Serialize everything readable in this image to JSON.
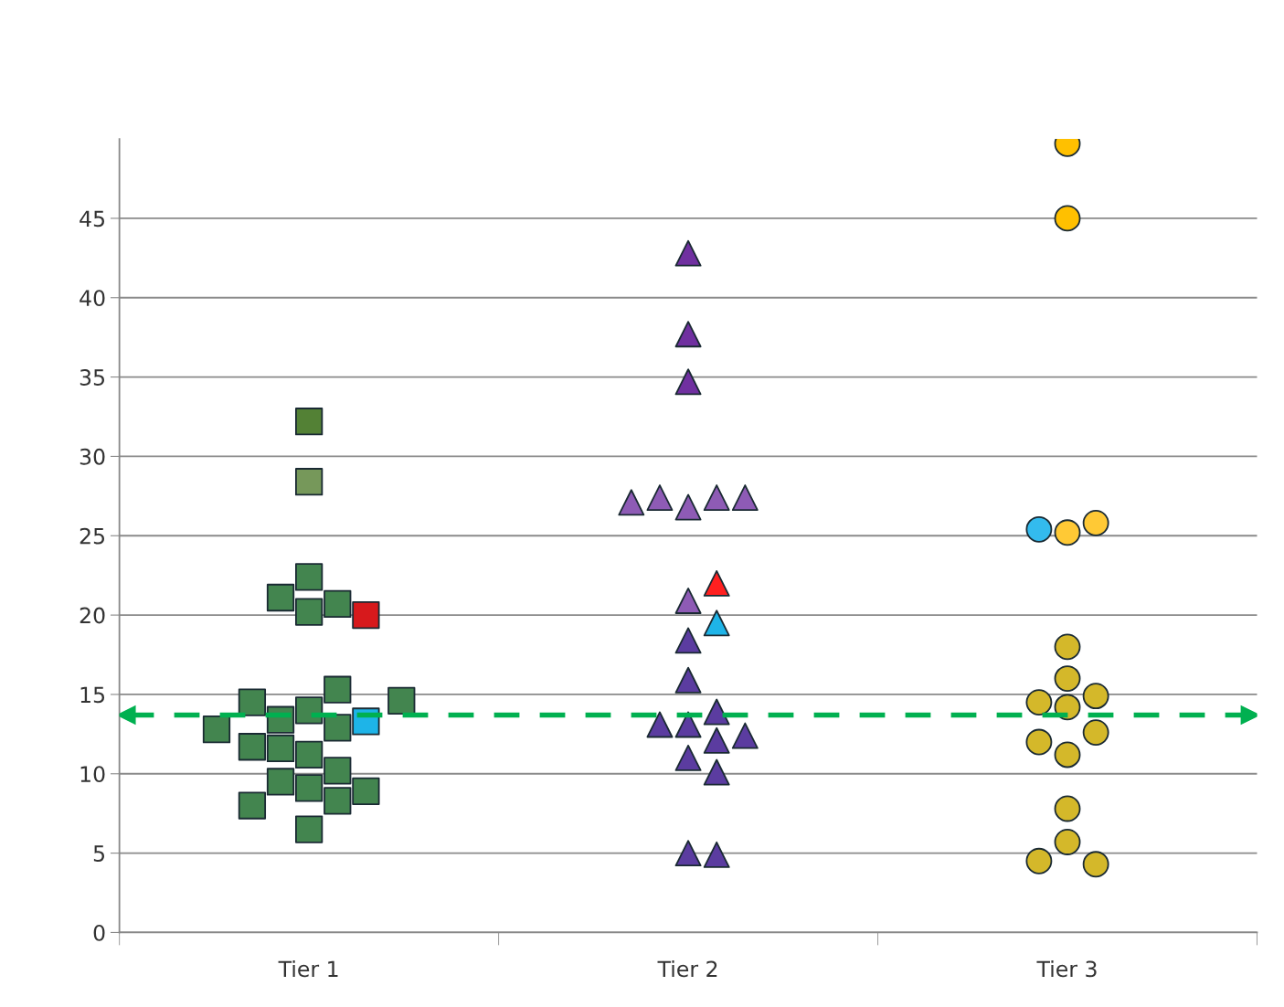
{
  "chart_data": {
    "type": "scatter",
    "categories": [
      "Tier 1",
      "Tier 2",
      "Tier 3"
    ],
    "ylim": [
      0,
      50
    ],
    "yticks": [
      0,
      5,
      10,
      15,
      20,
      25,
      30,
      35,
      40,
      45
    ],
    "grid": "y",
    "ref_lines": [
      {
        "axis": "y",
        "value": 13.7,
        "color": "#00b050",
        "line_style": "dashed"
      }
    ],
    "series": [
      {
        "marker": "square",
        "x": [
          "Tier 1",
          "Tier 1",
          "Tier 1",
          "Tier 1",
          "Tier 1",
          "Tier 1",
          "Tier 1",
          "Tier 1",
          "Tier 1",
          "Tier 1",
          "Tier 1",
          "Tier 1",
          "Tier 1",
          "Tier 1",
          "Tier 1",
          "Tier 1",
          "Tier 1",
          "Tier 1",
          "Tier 1",
          "Tier 1",
          "Tier 1",
          "Tier 1",
          "Tier 1",
          "Tier 1",
          "Tier 1"
        ],
        "values": [
          32.2,
          28.4,
          22.4,
          20.7,
          21.1,
          20.2,
          20.0,
          14.0,
          12.9,
          13.4,
          13.3,
          11.2,
          9.1,
          8.3,
          6.5,
          11.6,
          14.5,
          15.3,
          14.6,
          12.8,
          11.7,
          10.2,
          9.5,
          8.9,
          8.0
        ],
        "colors": [
          "#538135",
          "#76985a",
          "#43854f",
          "#43854f",
          "#43854f",
          "#43854f",
          "#d7191c",
          "#43854f",
          "#43854f",
          "#43854f",
          "#1eb4e8",
          "#43854f",
          "#43854f",
          "#43854f",
          "#43854f",
          "#43854f",
          "#43854f",
          "#43854f",
          "#43854f",
          "#43854f",
          "#43854f",
          "#43854f",
          "#43854f",
          "#43854f",
          "#43854f"
        ]
      },
      {
        "marker": "triangle",
        "x": [
          "Tier 2",
          "Tier 2",
          "Tier 2",
          "Tier 2",
          "Tier 2",
          "Tier 2",
          "Tier 2",
          "Tier 2",
          "Tier 2",
          "Tier 2",
          "Tier 2",
          "Tier 2",
          "Tier 2",
          "Tier 2",
          "Tier 2",
          "Tier 2",
          "Tier 2",
          "Tier 2",
          "Tier 2",
          "Tier 2",
          "Tier 2",
          "Tier 2"
        ],
        "values": [
          42.8,
          37.7,
          34.7,
          26.8,
          27.4,
          27.4,
          27.4,
          27.1,
          20.9,
          22.0,
          19.5,
          18.4,
          15.9,
          13.1,
          13.9,
          13.1,
          12.4,
          12.1,
          11.0,
          10.1,
          5.0,
          4.9
        ],
        "colors": [
          "#7030a0",
          "#7030a0",
          "#7030a0",
          "#8e5bb5",
          "#8e5bb5",
          "#8e5bb5",
          "#8e5bb5",
          "#8e5bb5",
          "#8e5bb5",
          "#ff2020",
          "#1eb4e8",
          "#5b3ca0",
          "#5b3ca0",
          "#5b3ca0",
          "#5b3ca0",
          "#5b3ca0",
          "#5b3ca0",
          "#5b3ca0",
          "#5b3ca0",
          "#5b3ca0",
          "#5b3ca0",
          "#5b3ca0"
        ]
      },
      {
        "marker": "circle",
        "x": [
          "Tier 3",
          "Tier 3",
          "Tier 3",
          "Tier 3",
          "Tier 3",
          "Tier 3",
          "Tier 3",
          "Tier 3",
          "Tier 3",
          "Tier 3",
          "Tier 3",
          "Tier 3",
          "Tier 3",
          "Tier 3",
          "Tier 3",
          "Tier 3",
          "Tier 3"
        ],
        "values": [
          49.7,
          45.0,
          25.2,
          25.8,
          25.4,
          18.0,
          16.0,
          14.9,
          14.5,
          14.2,
          12.6,
          11.2,
          12.0,
          7.8,
          5.7,
          4.3,
          4.5
        ],
        "colors": [
          "#ffc000",
          "#ffc000",
          "#ffc935",
          "#ffc935",
          "#33bbee",
          "#d4b82a",
          "#d4b82a",
          "#d4b82a",
          "#d4b82a",
          "#d4b82a",
          "#d4b82a",
          "#d4b82a",
          "#d4b82a",
          "#d4b82a",
          "#d4b82a",
          "#d4b82a",
          "#d4b82a"
        ]
      }
    ]
  }
}
